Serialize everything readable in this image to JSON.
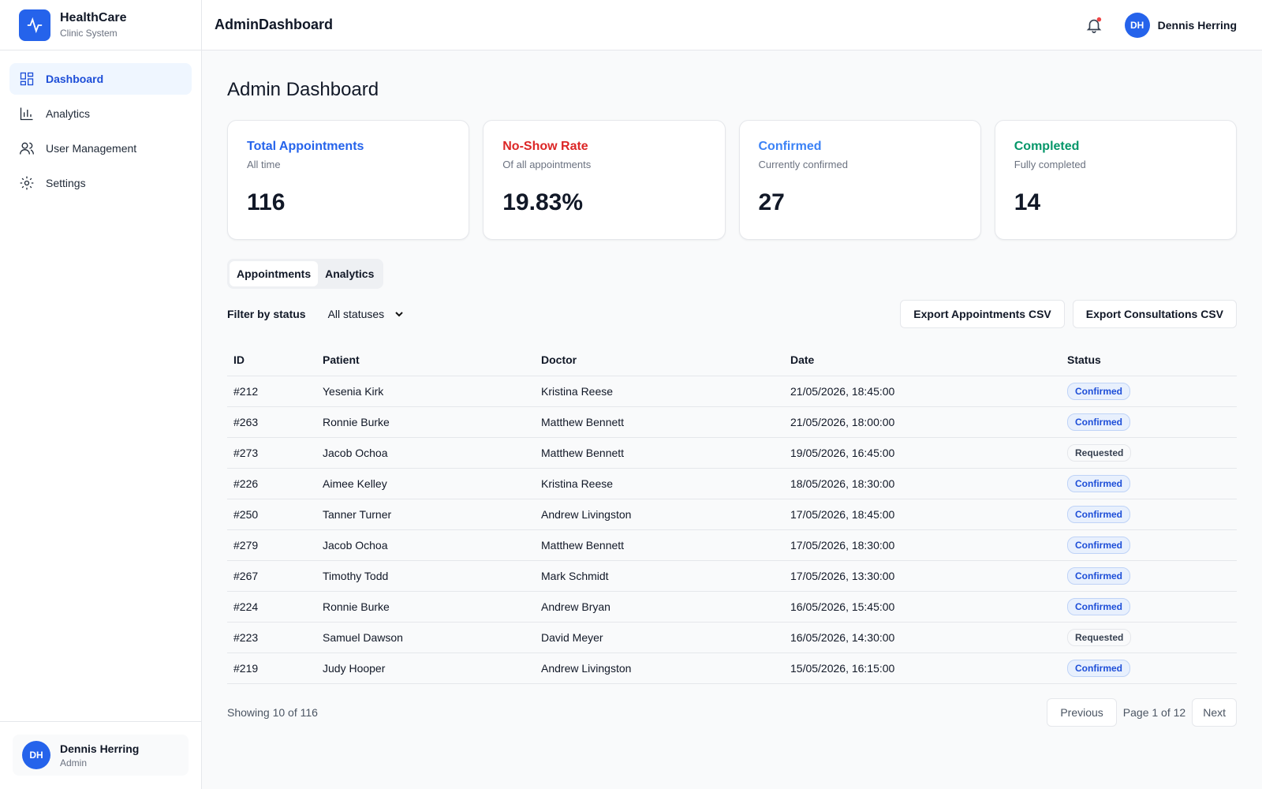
{
  "sidebar": {
    "brand": {
      "title": "HealthCare",
      "subtitle": "Clinic System"
    },
    "nav": [
      "Dashboard",
      "Analytics",
      "User Management",
      "Settings"
    ],
    "user": {
      "initials": "DH",
      "name": "Dennis Herring",
      "role": "Admin"
    }
  },
  "header": {
    "title": "AdminDashboard",
    "user": {
      "initials": "DH",
      "name": "Dennis Herring"
    }
  },
  "page_title": "Admin Dashboard",
  "stats": [
    {
      "title": "Total Appointments",
      "subtitle": "All time",
      "value": "116"
    },
    {
      "title": "No-Show Rate",
      "subtitle": "Of all appointments",
      "value": "19.83%"
    },
    {
      "title": "Confirmed",
      "subtitle": "Currently confirmed",
      "value": "27"
    },
    {
      "title": "Completed",
      "subtitle": "Fully completed",
      "value": "14"
    }
  ],
  "tabs": [
    "Appointments",
    "Analytics"
  ],
  "filter": {
    "label": "Filter by status",
    "selected": "All statuses"
  },
  "actions": [
    "Export Appointments CSV",
    "Export Consultations CSV"
  ],
  "table": {
    "columns": [
      "ID",
      "Patient",
      "Doctor",
      "Date",
      "Status"
    ],
    "rows": [
      [
        "#212",
        "Yesenia Kirk",
        "Kristina Reese",
        "21/05/2026, 18:45:00",
        "Confirmed"
      ],
      [
        "#263",
        "Ronnie Burke",
        "Matthew Bennett",
        "21/05/2026, 18:00:00",
        "Confirmed"
      ],
      [
        "#273",
        "Jacob Ochoa",
        "Matthew Bennett",
        "19/05/2026, 16:45:00",
        "Requested"
      ],
      [
        "#226",
        "Aimee Kelley",
        "Kristina Reese",
        "18/05/2026, 18:30:00",
        "Confirmed"
      ],
      [
        "#250",
        "Tanner Turner",
        "Andrew Livingston",
        "17/05/2026, 18:45:00",
        "Confirmed"
      ],
      [
        "#279",
        "Jacob Ochoa",
        "Matthew Bennett",
        "17/05/2026, 18:30:00",
        "Confirmed"
      ],
      [
        "#267",
        "Timothy Todd",
        "Mark Schmidt",
        "17/05/2026, 13:30:00",
        "Confirmed"
      ],
      [
        "#224",
        "Ronnie Burke",
        "Andrew Bryan",
        "16/05/2026, 15:45:00",
        "Confirmed"
      ],
      [
        "#223",
        "Samuel Dawson",
        "David Meyer",
        "16/05/2026, 14:30:00",
        "Requested"
      ],
      [
        "#219",
        "Judy Hooper",
        "Andrew Livingston",
        "15/05/2026, 16:15:00",
        "Confirmed"
      ]
    ]
  },
  "footer": {
    "showing": "Showing 10 of 116",
    "previous": "Previous",
    "page": "Page 1 of 12",
    "next": "Next"
  }
}
